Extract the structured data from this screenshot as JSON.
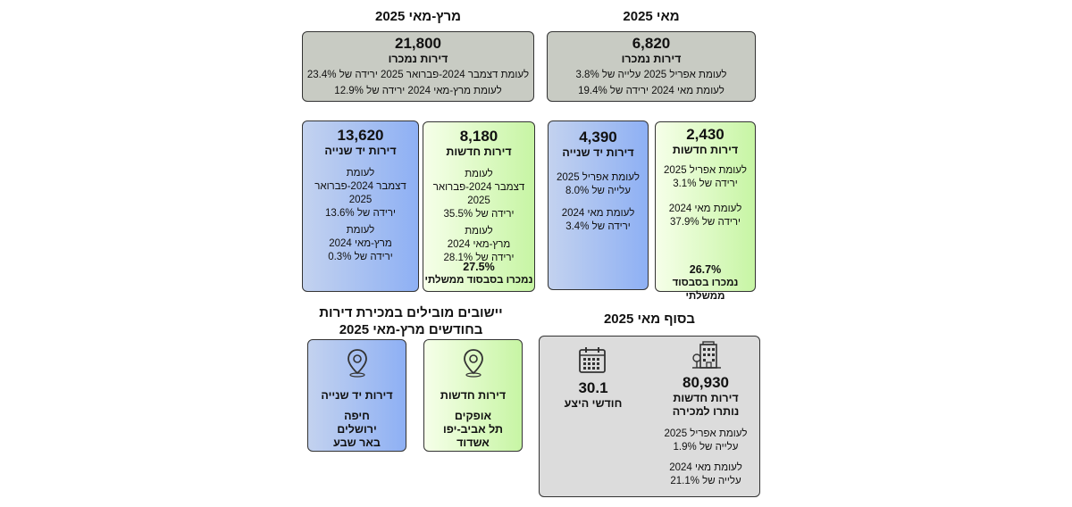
{
  "may": {
    "title": "מאי 2025",
    "total": {
      "value": "6,820",
      "label": "דירות נמכרו",
      "line1": "לעומת אפריל 2025 עלייה של 3.8%",
      "line2": "לעומת מאי 2024 ירידה של 19.4%"
    },
    "new": {
      "value": "2,430",
      "label": "דירות חדשות",
      "c1a": "לעומת אפריל 2025",
      "c1b": "ירידה של 3.1%",
      "c2a": "לעומת מאי 2024",
      "c2b": "ירידה של 37.9%",
      "subsidy_value": "26.7%",
      "subsidy_label": "נמכרו בסבסוד ממשלתי"
    },
    "second": {
      "value": "4,390",
      "label": "דירות יד שנייה",
      "c1a": "לעומת אפריל 2025",
      "c1b": "עלייה של 8.0%",
      "c2a": "לעומת מאי 2024",
      "c2b": "ירידה של 3.4%"
    }
  },
  "marmay": {
    "title": "מרץ-מאי 2025",
    "total": {
      "value": "21,800",
      "label": "דירות נמכרו",
      "line1": "לעומת דצמבר 2024-פברואר 2025 ירידה של 23.4%",
      "line2": "לעומת מרץ-מאי 2024 ירידה של 12.9%"
    },
    "new": {
      "value": "8,180",
      "label": "דירות חדשות",
      "c1a": "לעומת",
      "c1b": "דצמבר 2024-פברואר 2025",
      "c1c": "ירידה של 35.5%",
      "c2a": "לעומת",
      "c2b": "מרץ-מאי 2024",
      "c2c": "ירידה של 28.1%",
      "subsidy_value": "27.5%",
      "subsidy_label": "נמכרו בסבסוד ממשלתי"
    },
    "second": {
      "value": "13,620",
      "label": "דירות יד שנייה",
      "c1a": "לעומת",
      "c1b": "דצמבר 2024-פברואר 2025",
      "c1c": "ירידה של 13.6%",
      "c2a": "לעומת",
      "c2b": "מרץ-מאי 2024",
      "c2c": "ירידה של 0.3%"
    }
  },
  "end_may": {
    "title": "בסוף מאי 2025",
    "available": {
      "value": "80,930",
      "label1": "דירות חדשות",
      "label2": "נותרו למכירה",
      "c1a": "לעומת אפריל 2025",
      "c1b": "עלייה של 1.9%",
      "c2a": "לעומת מאי 2024",
      "c2b": "עלייה של 21.1%"
    },
    "supply": {
      "value": "30.1",
      "label": "חודשי היצע"
    }
  },
  "leading": {
    "title1": "יישובים מובילים במכירת דירות",
    "title2": "בחודשים מרץ-מאי 2025",
    "new": {
      "label": "דירות חדשות",
      "cities": [
        "אופקים",
        "תל אביב-יפו",
        "אשדוד"
      ]
    },
    "second": {
      "label": "דירות יד שנייה",
      "cities": [
        "חיפה",
        "ירושלים",
        "באר שבע"
      ]
    }
  },
  "colors": {
    "blue_box": "#8eb0f4",
    "green_box": "#c7f5a4",
    "gray_box": "#c8cbc3"
  },
  "icons": [
    "building-icon",
    "calendar-icon",
    "location-pin-icon"
  ]
}
